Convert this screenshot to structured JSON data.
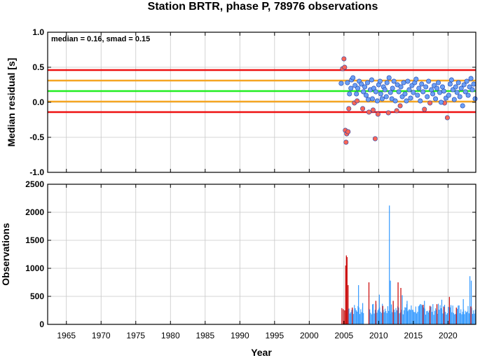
{
  "title": "Station BRTR, phase P, 78976 observations",
  "xlabel": "Year",
  "chart_data": [
    {
      "type": "scatter",
      "ylabel": "Median residual [s]",
      "annotation": "median = 0.16, smad = 0.15",
      "xlim": [
        1962.3,
        2024.0
      ],
      "ylim": [
        -1.0,
        1.0
      ],
      "yticks": [
        "-1.0",
        "-0.5",
        "0.0",
        "0.5",
        "1.0"
      ],
      "yticks_values": [
        -1.0,
        -0.5,
        0.0,
        0.5,
        1.0
      ],
      "grid": true,
      "reference_lines": [
        {
          "y": 0.46,
          "color": "#ee1111"
        },
        {
          "y": 0.31,
          "color": "#f5a623"
        },
        {
          "y": 0.16,
          "color": "#22ee22"
        },
        {
          "y": 0.01,
          "color": "#f5a623"
        },
        {
          "y": -0.14,
          "color": "#ee1111"
        }
      ],
      "series": [
        {
          "color": "#ff6655",
          "points": [
            [
              2004.8,
              0.48
            ],
            [
              2005.0,
              0.62
            ],
            [
              2005.1,
              0.5
            ],
            [
              2005.2,
              -0.4
            ],
            [
              2005.4,
              -0.45
            ],
            [
              2005.6,
              -0.42
            ],
            [
              2005.3,
              -0.57
            ],
            [
              2005.7,
              -0.09
            ],
            [
              2006.5,
              -0.01
            ],
            [
              2006.9,
              0.02
            ],
            [
              2007.7,
              -0.09
            ],
            [
              2008.6,
              -0.14
            ],
            [
              2009.2,
              -0.11
            ],
            [
              2009.5,
              -0.52
            ],
            [
              2009.9,
              -0.17
            ],
            [
              2011.4,
              -0.15
            ],
            [
              2012.6,
              -0.12
            ],
            [
              2013.1,
              -0.05
            ],
            [
              2016.6,
              -0.1
            ],
            [
              2017.4,
              -0.01
            ],
            [
              2019.5,
              -0.01
            ],
            [
              2019.9,
              -0.22
            ]
          ]
        },
        {
          "color": "#6b9ff5",
          "points": [
            [
              2004.6,
              0.27
            ],
            [
              2005.5,
              0.28
            ],
            [
              2005.8,
              0.12
            ],
            [
              2006.0,
              0.2
            ],
            [
              2006.1,
              0.32
            ],
            [
              2006.3,
              0.35
            ],
            [
              2006.6,
              0.24
            ],
            [
              2006.8,
              0.12
            ],
            [
              2007.0,
              0.2
            ],
            [
              2007.2,
              0.3
            ],
            [
              2007.5,
              0.26
            ],
            [
              2007.8,
              0.15
            ],
            [
              2008.0,
              0.22
            ],
            [
              2008.2,
              0.1
            ],
            [
              2008.4,
              0.28
            ],
            [
              2008.5,
              0.04
            ],
            [
              2008.8,
              0.18
            ],
            [
              2009.0,
              0.32
            ],
            [
              2009.1,
              0.05
            ],
            [
              2009.3,
              0.2
            ],
            [
              2009.6,
              0.15
            ],
            [
              2009.8,
              0.02
            ],
            [
              2010.0,
              0.25
            ],
            [
              2010.2,
              0.3
            ],
            [
              2010.3,
              0.12
            ],
            [
              2010.5,
              0.05
            ],
            [
              2010.7,
              0.22
            ],
            [
              2010.9,
              0.18
            ],
            [
              2011.1,
              0.08
            ],
            [
              2011.2,
              0.28
            ],
            [
              2011.5,
              0.35
            ],
            [
              2011.7,
              0.14
            ],
            [
              2011.9,
              0.05
            ],
            [
              2012.0,
              0.2
            ],
            [
              2012.2,
              0.3
            ],
            [
              2012.4,
              0.02
            ],
            [
              2012.7,
              0.25
            ],
            [
              2012.9,
              0.15
            ],
            [
              2013.2,
              0.22
            ],
            [
              2013.4,
              0.08
            ],
            [
              2013.6,
              0.28
            ],
            [
              2013.8,
              0.12
            ],
            [
              2014.0,
              0.02
            ],
            [
              2014.2,
              0.3
            ],
            [
              2014.4,
              0.18
            ],
            [
              2014.6,
              0.06
            ],
            [
              2014.8,
              0.24
            ],
            [
              2015.0,
              0.14
            ],
            [
              2015.2,
              0.28
            ],
            [
              2015.4,
              0.33
            ],
            [
              2015.6,
              0.1
            ],
            [
              2015.8,
              0.2
            ],
            [
              2016.0,
              0.02
            ],
            [
              2016.2,
              0.26
            ],
            [
              2016.4,
              0.15
            ],
            [
              2016.8,
              0.22
            ],
            [
              2017.0,
              0.08
            ],
            [
              2017.2,
              0.3
            ],
            [
              2017.6,
              0.18
            ],
            [
              2017.8,
              0.12
            ],
            [
              2018.0,
              0.24
            ],
            [
              2018.2,
              0.05
            ],
            [
              2018.4,
              0.2
            ],
            [
              2018.6,
              0.28
            ],
            [
              2018.8,
              0.14
            ],
            [
              2019.0,
              0.0
            ],
            [
              2019.2,
              0.22
            ],
            [
              2019.4,
              0.16
            ],
            [
              2019.7,
              0.06
            ],
            [
              2020.1,
              0.1
            ],
            [
              2020.3,
              0.26
            ],
            [
              2020.5,
              0.32
            ],
            [
              2020.7,
              0.18
            ],
            [
              2020.9,
              0.04
            ],
            [
              2021.1,
              0.22
            ],
            [
              2021.3,
              0.14
            ],
            [
              2021.5,
              0.28
            ],
            [
              2021.7,
              0.08
            ],
            [
              2021.9,
              0.2
            ],
            [
              2022.1,
              -0.05
            ],
            [
              2022.3,
              0.25
            ],
            [
              2022.5,
              0.15
            ],
            [
              2022.7,
              0.3
            ],
            [
              2022.9,
              0.1
            ],
            [
              2023.1,
              0.22
            ],
            [
              2023.3,
              0.34
            ],
            [
              2023.5,
              0.18
            ],
            [
              2023.7,
              0.26
            ],
            [
              2023.9,
              0.05
            ]
          ]
        }
      ]
    },
    {
      "type": "bar",
      "ylabel": "Observations",
      "xlim": [
        1962.3,
        2024.0
      ],
      "ylim": [
        0,
        2500
      ],
      "yticks": [
        "0",
        "500",
        "1000",
        "1500",
        "2000",
        "2500"
      ],
      "yticks_values": [
        0,
        500,
        1000,
        1500,
        2000,
        2500
      ],
      "xticks": [
        "1965",
        "1970",
        "1975",
        "1980",
        "1985",
        "1990",
        "1995",
        "2000",
        "2005",
        "2010",
        "2015",
        "2020"
      ],
      "xticks_values": [
        1965,
        1970,
        1975,
        1980,
        1985,
        1990,
        1995,
        2000,
        2005,
        2010,
        2015,
        2020
      ],
      "grid": true,
      "colors": {
        "normal": "#3399ff",
        "outlier": "#cc1111"
      },
      "red_bars": [
        [
          2004.7,
          290
        ],
        [
          2004.9,
          270
        ],
        [
          2005.1,
          250
        ],
        [
          2005.25,
          1050
        ],
        [
          2005.35,
          1230
        ],
        [
          2005.45,
          1200
        ],
        [
          2005.6,
          700
        ],
        [
          2006.2,
          300
        ],
        [
          2008.6,
          750
        ],
        [
          2009.6,
          420
        ],
        [
          2010.6,
          330
        ],
        [
          2012.1,
          420
        ],
        [
          2012.8,
          750
        ],
        [
          2013.2,
          650
        ],
        [
          2016.4,
          350
        ],
        [
          2017.4,
          330
        ],
        [
          2018.4,
          360
        ],
        [
          2019.4,
          310
        ],
        [
          2020.2,
          490
        ],
        [
          2021.2,
          300
        ],
        [
          2023.3,
          320
        ]
      ],
      "blue_peaks": [
        [
          2007.1,
          700
        ],
        [
          2007.7,
          380
        ],
        [
          2010.1,
          530
        ],
        [
          2011.55,
          2120
        ],
        [
          2011.7,
          780
        ],
        [
          2013.4,
          520
        ],
        [
          2014.1,
          420
        ],
        [
          2016.6,
          420
        ],
        [
          2019.1,
          440
        ],
        [
          2022.2,
          450
        ],
        [
          2023.15,
          860
        ],
        [
          2023.35,
          780
        ]
      ]
    }
  ]
}
